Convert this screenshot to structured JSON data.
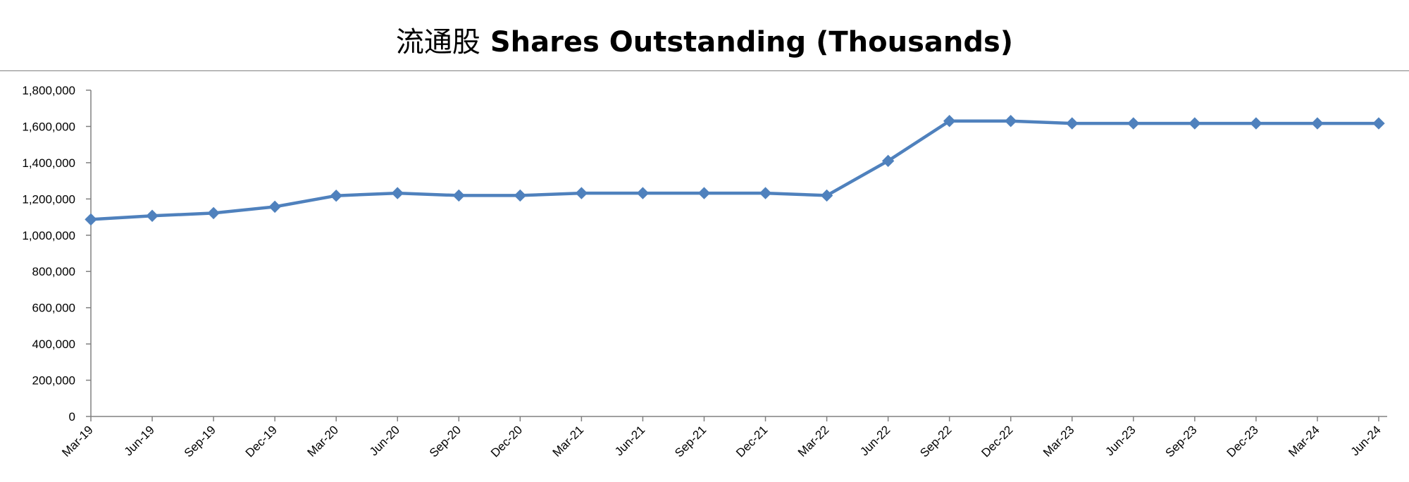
{
  "chart_data": {
    "type": "line",
    "title": "流通股 Shares Outstanding (Thousands)",
    "title_cn": "流通股",
    "title_en": "Shares Outstanding (Thousands)",
    "xlabel": "",
    "ylabel": "",
    "categories": [
      "Mar-19",
      "Jun-19",
      "Sep-19",
      "Dec-19",
      "Mar-20",
      "Jun-20",
      "Sep-20",
      "Dec-20",
      "Mar-21",
      "Jun-21",
      "Sep-21",
      "Dec-21",
      "Mar-22",
      "Jun-22",
      "Sep-22",
      "Dec-22",
      "Mar-23",
      "Jun-23",
      "Sep-23",
      "Dec-23",
      "Mar-24",
      "Jun-24"
    ],
    "series": [
      {
        "color": "#4F81BD",
        "marker": "diamond",
        "values": [
          1087000,
          1107000,
          1122000,
          1157000,
          1218000,
          1232000,
          1219000,
          1219000,
          1232000,
          1232000,
          1232000,
          1232000,
          1219000,
          1410000,
          1630000,
          1630000,
          1617000,
          1617000,
          1617000,
          1617000,
          1617000,
          1617000
        ]
      }
    ],
    "ylim": [
      0,
      1800000
    ],
    "yticks": [
      0,
      200000,
      400000,
      600000,
      800000,
      1000000,
      1200000,
      1400000,
      1600000,
      1800000
    ],
    "ytick_labels": [
      "0",
      "200,000",
      "400,000",
      "600,000",
      "800,000",
      "1,000,000",
      "1,200,000",
      "1,400,000",
      "1,600,000",
      "1,800,000"
    ],
    "grid": false,
    "legend": "none"
  }
}
